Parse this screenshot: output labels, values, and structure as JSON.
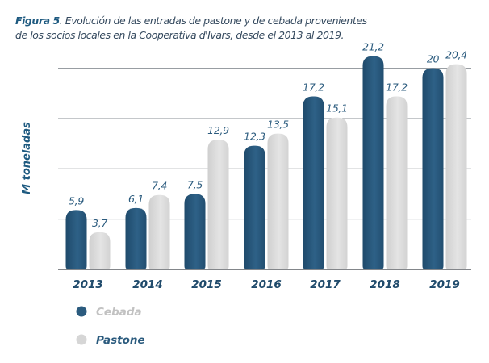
{
  "caption": {
    "label": "Figura 5",
    "text": ". Evolución de las entradas de pastone y de cebada provenientes",
    "text_line2": "de los socios locales en la Cooperativa d'Ivars, desde el 2013 al 2019."
  },
  "chart_data": {
    "type": "bar",
    "title": "Figura 5. Evolución de las entradas de pastone y de cebada provenientes de los socios locales en la Cooperativa d'Ivars, desde el 2013 al 2019.",
    "ylabel": "M toneladas",
    "xlabel": "",
    "categories": [
      "2013",
      "2014",
      "2015",
      "2016",
      "2017",
      "2018",
      "2019"
    ],
    "series": [
      {
        "name": "Cebada",
        "color": "#2b5b7e",
        "values": [
          5.9,
          6.1,
          7.5,
          12.3,
          17.2,
          21.2,
          20
        ],
        "labels": [
          "5,9",
          "6,1",
          "7,5",
          "12,3",
          "17,2",
          "21,2",
          "20"
        ]
      },
      {
        "name": "Pastone",
        "color": "#d9d9d9",
        "values": [
          3.7,
          7.4,
          12.9,
          13.5,
          15.1,
          17.2,
          20.4
        ],
        "labels": [
          "3,7",
          "7,4",
          "12,9",
          "13,5",
          "15,1",
          "17,2",
          "20,4"
        ]
      }
    ],
    "ylim": [
      0,
      22
    ],
    "grid": true,
    "legend_position": "bottom-left"
  }
}
